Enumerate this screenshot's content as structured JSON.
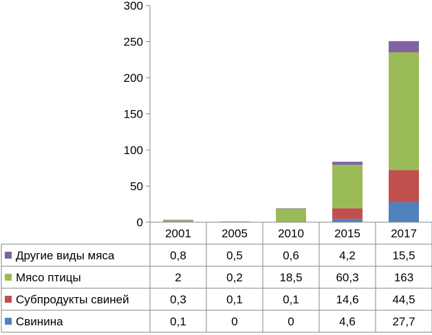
{
  "chart_data": {
    "type": "bar",
    "stacked": true,
    "categories": [
      "2001",
      "2005",
      "2010",
      "2015",
      "2017"
    ],
    "series": [
      {
        "name": "Свинина",
        "values": [
          0.1,
          0,
          0,
          4.6,
          27.7
        ],
        "labels": [
          "0,1",
          "0",
          "0",
          "4,6",
          "27,7"
        ],
        "color": "#4f81bd"
      },
      {
        "name": "Субпродукты свиней",
        "values": [
          0.3,
          0.1,
          0.1,
          14.6,
          44.5
        ],
        "labels": [
          "0,3",
          "0,1",
          "0,1",
          "14,6",
          "44,5"
        ],
        "color": "#c0504d"
      },
      {
        "name": "Мясо птицы",
        "values": [
          2,
          0.2,
          18.5,
          60.3,
          163
        ],
        "labels": [
          "2",
          "0,2",
          "18,5",
          "60,3",
          "163"
        ],
        "color": "#9bbb59"
      },
      {
        "name": "Другие виды мяса",
        "values": [
          0.8,
          0.5,
          0.6,
          4.2,
          15.5
        ],
        "labels": [
          "0,8",
          "0,5",
          "0,6",
          "4,2",
          "15,5"
        ],
        "color": "#8064a2"
      }
    ],
    "table_row_order": [
      "Другие виды мяса",
      "Мясо птицы",
      "Субпродукты свиней",
      "Свинина"
    ],
    "ylim": [
      0,
      300
    ],
    "yticks": [
      "0",
      "50",
      "100",
      "150",
      "200",
      "250",
      "300"
    ],
    "title": "",
    "xlabel": "",
    "ylabel": "",
    "grid": false,
    "legend": "data-table-left"
  }
}
